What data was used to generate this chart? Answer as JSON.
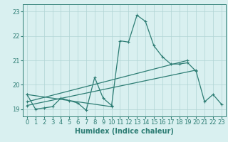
{
  "xlabel": "Humidex (Indice chaleur)",
  "bg_color": "#d9f0f0",
  "grid_color": "#b0d4d4",
  "line_color": "#2d7d74",
  "xlim": [
    -0.5,
    23.5
  ],
  "ylim": [
    18.7,
    23.3
  ],
  "xticks": [
    0,
    1,
    2,
    3,
    4,
    5,
    6,
    7,
    8,
    9,
    10,
    11,
    12,
    13,
    14,
    15,
    16,
    17,
    18,
    19,
    20,
    21,
    22,
    23
  ],
  "yticks": [
    19,
    20,
    21,
    22,
    23
  ],
  "line1": [
    19.6,
    19.0,
    19.05,
    19.1,
    19.45,
    19.35,
    19.25,
    18.95,
    20.3,
    19.45,
    19.15,
    21.8,
    21.75,
    22.85,
    22.6,
    21.6,
    21.15,
    20.85,
    20.85,
    20.9,
    20.55,
    19.3,
    19.6,
    19.2
  ],
  "line2_x": [
    0,
    10
  ],
  "line2_y": [
    19.6,
    19.1
  ],
  "line3_x": [
    0,
    19
  ],
  "line3_y": [
    19.3,
    21.0
  ],
  "line4_x": [
    0,
    20
  ],
  "line4_y": [
    19.15,
    20.6
  ],
  "markersize": 3.5,
  "linewidth": 0.9,
  "tick_fontsize": 6,
  "xlabel_fontsize": 7
}
